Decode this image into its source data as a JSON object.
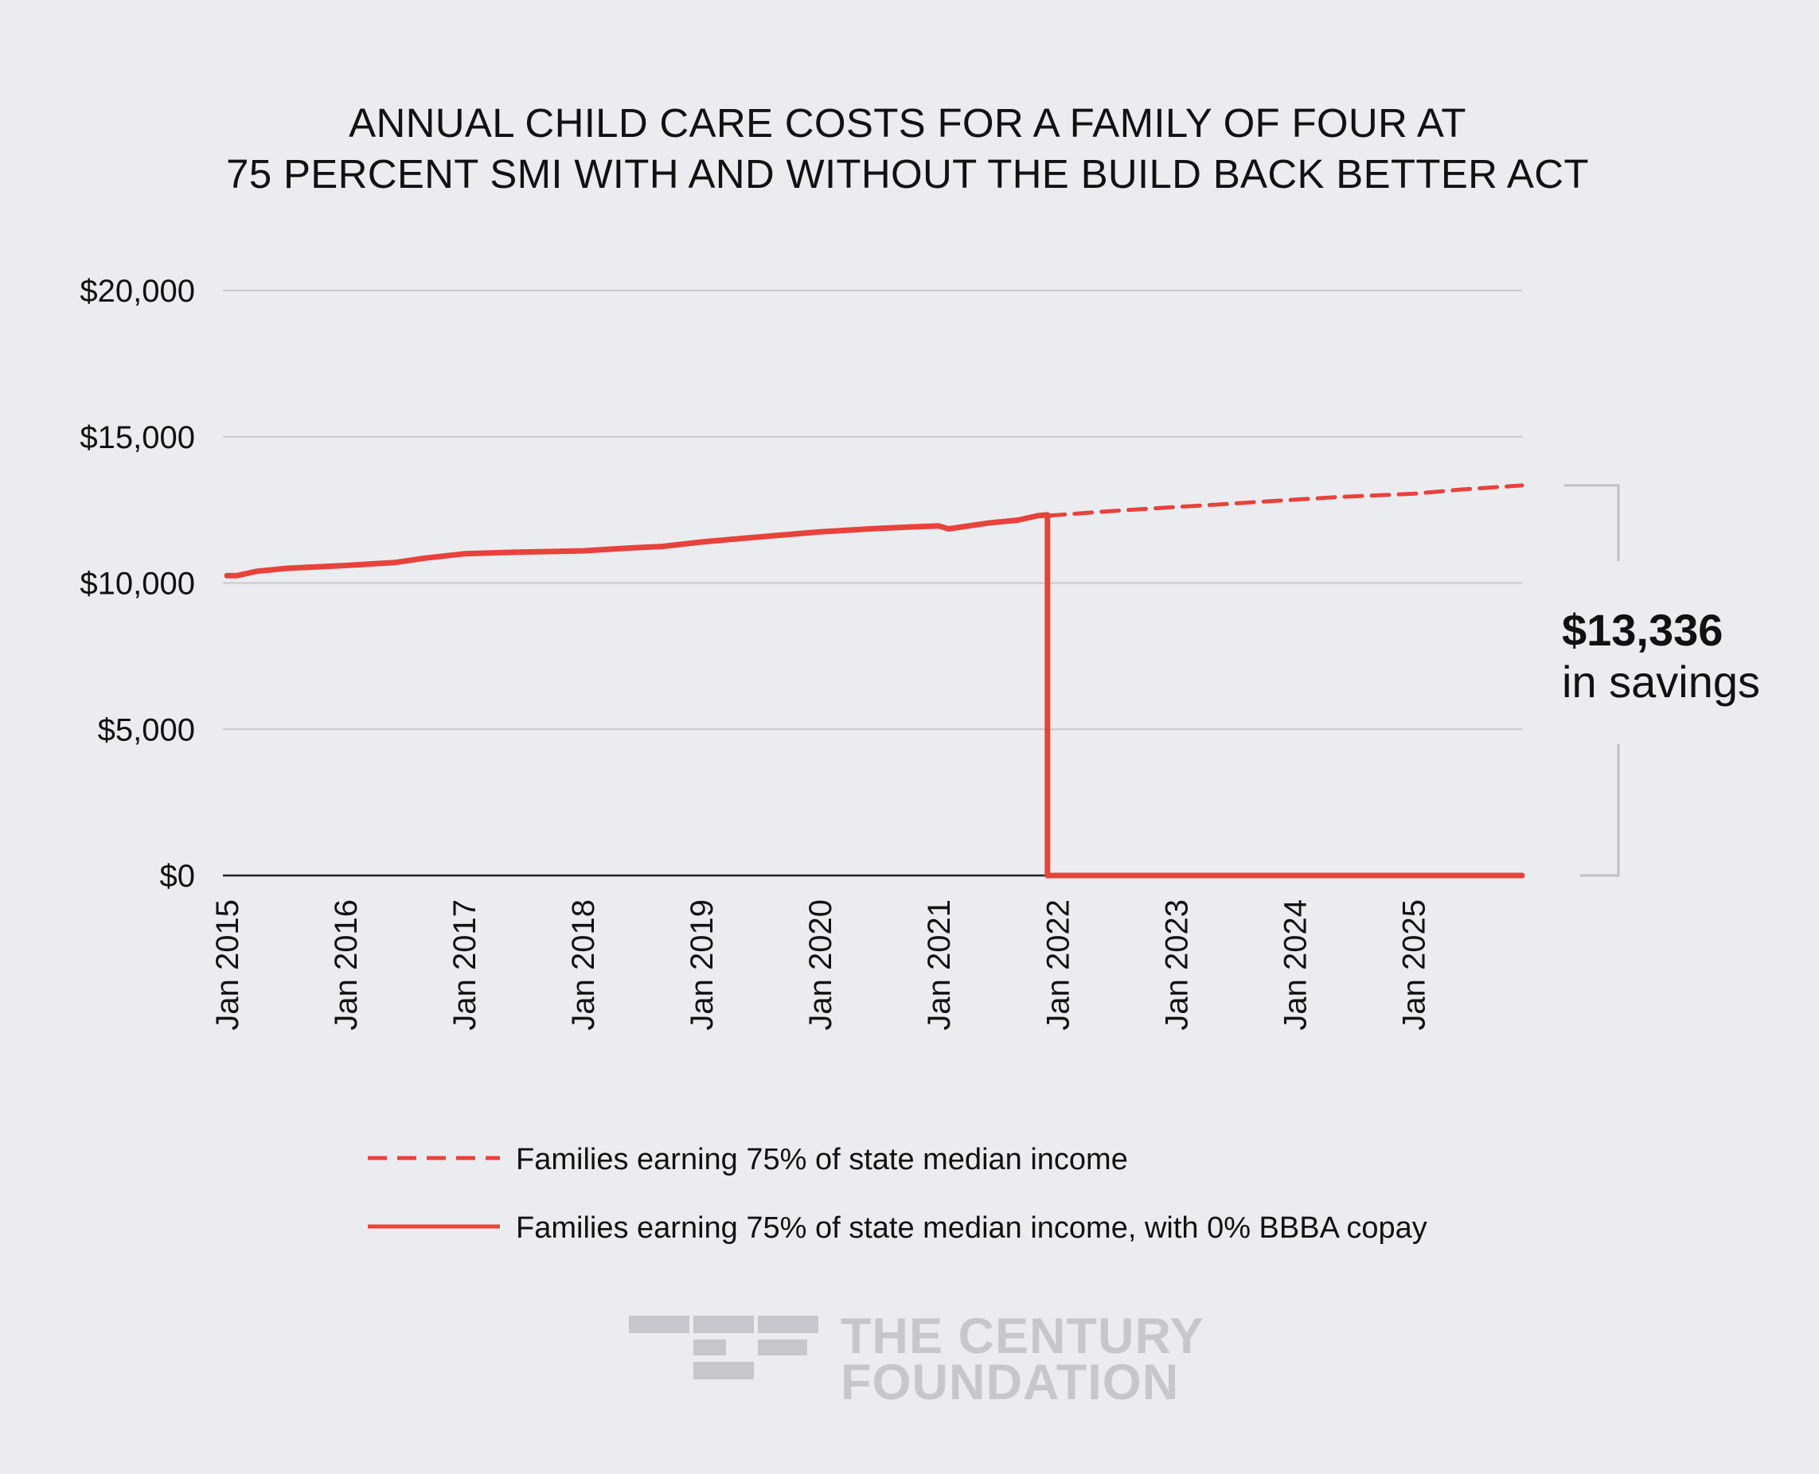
{
  "chart_data": {
    "type": "line",
    "title": [
      "ANNUAL CHILD CARE COSTS FOR A FAMILY OF FOUR AT",
      "75 PERCENT SMI WITH AND WITHOUT THE BUILD BACK BETTER ACT"
    ],
    "xlabel": "",
    "ylabel": "",
    "ylim": [
      0,
      20000
    ],
    "xlim": [
      "2015-01",
      "2025-12"
    ],
    "y_ticks": [
      {
        "value": 20000,
        "label": "$20,000"
      },
      {
        "value": 15000,
        "label": "$15,000"
      },
      {
        "value": 10000,
        "label": "$10,000"
      },
      {
        "value": 5000,
        "label": "$5,000"
      },
      {
        "value": 0,
        "label": "$0"
      }
    ],
    "x_ticks": [
      {
        "value": "2015-01",
        "label": "Jan 2015"
      },
      {
        "value": "2016-01",
        "label": "Jan 2016"
      },
      {
        "value": "2017-01",
        "label": "Jan 2017"
      },
      {
        "value": "2018-01",
        "label": "Jan 2018"
      },
      {
        "value": "2019-01",
        "label": "Jan 2019"
      },
      {
        "value": "2020-01",
        "label": "Jan 2020"
      },
      {
        "value": "2021-01",
        "label": "Jan 2021"
      },
      {
        "value": "2022-01",
        "label": "Jan 2022"
      },
      {
        "value": "2023-01",
        "label": "Jan 2023"
      },
      {
        "value": "2024-01",
        "label": "Jan 2024"
      },
      {
        "value": "2025-01",
        "label": "Jan 2025"
      }
    ],
    "grid": true,
    "legend_position": "bottom",
    "series": [
      {
        "name": "Families earning 75% of state median income",
        "style": "dashed",
        "color": "#e8423c",
        "x": [
          "2021-12",
          "2022-06",
          "2023-01",
          "2023-06",
          "2024-01",
          "2024-06",
          "2025-01",
          "2025-06",
          "2025-12"
        ],
        "y": [
          12300,
          12450,
          12600,
          12700,
          12850,
          12950,
          13050,
          13200,
          13336
        ]
      },
      {
        "name": "Families earning 75% of state median income, with 0% BBBA copay",
        "style": "solid",
        "color": "#e8423c",
        "x": [
          "2015-01",
          "2015-02",
          "2015-04",
          "2015-07",
          "2016-01",
          "2016-06",
          "2016-09",
          "2017-01",
          "2017-06",
          "2018-01",
          "2018-06",
          "2018-09",
          "2019-01",
          "2019-06",
          "2020-01",
          "2020-06",
          "2020-09",
          "2021-01",
          "2021-02",
          "2021-06",
          "2021-09",
          "2021-11",
          "2021-12",
          "2021-12",
          "2022-06",
          "2023-01",
          "2024-01",
          "2025-01",
          "2025-12"
        ],
        "y": [
          10250,
          10250,
          10400,
          10500,
          10600,
          10700,
          10850,
          11000,
          11050,
          11100,
          11200,
          11250,
          11400,
          11550,
          11750,
          11850,
          11900,
          11950,
          11850,
          12050,
          12150,
          12300,
          12330,
          0,
          0,
          0,
          0,
          0,
          0
        ]
      }
    ],
    "annotations": [
      {
        "value": "$13,336",
        "label": "in savings",
        "from": 0,
        "to": 13336
      }
    ]
  },
  "brand": {
    "line1": "THE CENTURY",
    "line2": "FOUNDATION"
  },
  "colors": {
    "background": "#ebecef",
    "series": "#e8423c",
    "grid": "#c8c9cc",
    "axis": "#222222",
    "bracket": "#bfc0c4",
    "logo": "#c5c7cc"
  }
}
